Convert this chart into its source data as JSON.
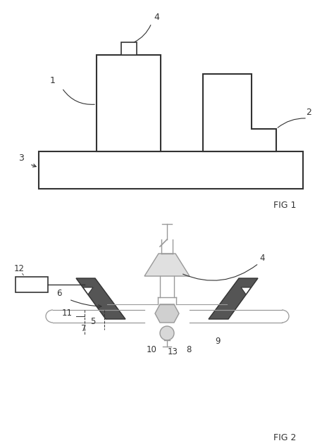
{
  "bg_color": "#ffffff",
  "line_color": "#333333",
  "gray_color": "#999999",
  "fig1_label": "FIG 1",
  "fig2_label": "FIG 2"
}
